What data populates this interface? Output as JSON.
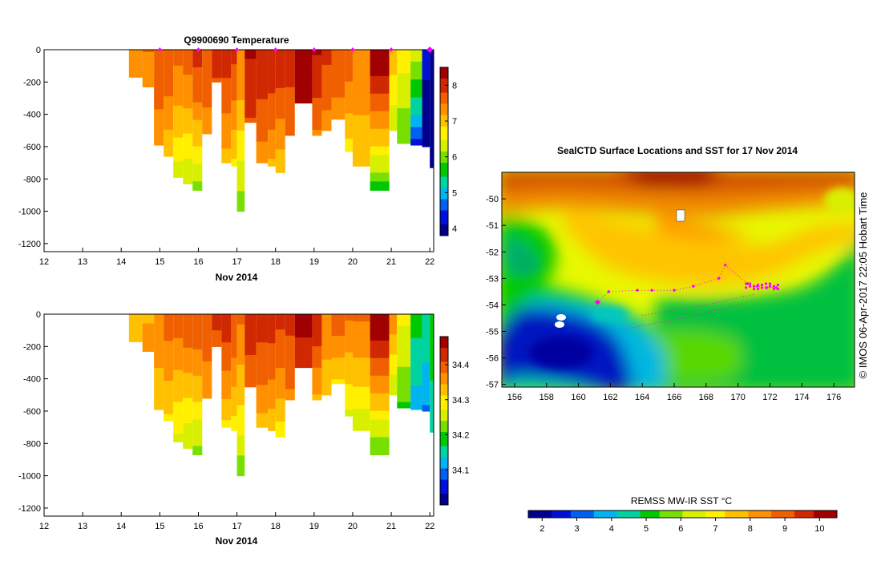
{
  "colors": {
    "scale": [
      "#00008c",
      "#0010d8",
      "#0060f0",
      "#00b4f0",
      "#00d2a0",
      "#00c800",
      "#78e000",
      "#d8f000",
      "#fff000",
      "#ffc000",
      "#ff9000",
      "#f06000",
      "#d02800",
      "#a00000"
    ],
    "frame": "#000000",
    "marker": "#ff00ff",
    "white": "#ffffff"
  },
  "chart_data": [
    {
      "type": "heatmap",
      "title": "Q9900690  Temperature",
      "xlabel": "Nov 2014",
      "ylabel": "",
      "xlim": [
        12,
        22.1
      ],
      "ylim": [
        -1250,
        0
      ],
      "xticks": [
        "12",
        "13",
        "14",
        "15",
        "16",
        "17",
        "18",
        "19",
        "20",
        "21",
        "22"
      ],
      "yticks": [
        "0",
        "-200",
        "-400",
        "-600",
        "-800",
        "-1000",
        "-1200"
      ],
      "colorbar": {
        "ticks": [
          "4",
          "5",
          "6",
          "7",
          "8"
        ],
        "range": [
          3.8,
          8.5
        ]
      },
      "profile_markers_x": [
        15.0,
        16.0,
        17.0,
        18.0,
        19.0,
        20.0,
        21.0,
        22.0
      ],
      "profiles": [
        {
          "x0": 14.2,
          "x1": 14.55,
          "depth": 170,
          "top": 7.4,
          "bot": 7.3
        },
        {
          "x0": 14.55,
          "x1": 14.85,
          "depth": 230,
          "top": 7.5,
          "bot": 7.3
        },
        {
          "x0": 14.85,
          "x1": 15.1,
          "depth": 590,
          "top": 7.8,
          "bot": 7.2
        },
        {
          "x0": 15.1,
          "x1": 15.35,
          "depth": 660,
          "top": 7.8,
          "bot": 6.9
        },
        {
          "x0": 15.35,
          "x1": 15.6,
          "depth": 790,
          "top": 7.6,
          "bot": 6.3
        },
        {
          "x0": 15.6,
          "x1": 15.85,
          "depth": 830,
          "top": 7.7,
          "bot": 6.1
        },
        {
          "x0": 15.85,
          "x1": 16.1,
          "depth": 870,
          "top": 8.0,
          "bot": 6.0
        },
        {
          "x0": 16.1,
          "x1": 16.35,
          "depth": 520,
          "top": 7.8,
          "bot": 7.3
        },
        {
          "x0": 16.35,
          "x1": 16.6,
          "depth": 200,
          "top": 8.0,
          "bot": 7.8
        },
        {
          "x0": 16.6,
          "x1": 16.85,
          "depth": 700,
          "top": 8.0,
          "bot": 7.0
        },
        {
          "x0": 16.85,
          "x1": 17.0,
          "depth": 720,
          "top": 7.9,
          "bot": 6.7
        },
        {
          "x0": 17.0,
          "x1": 17.2,
          "depth": 1000,
          "top": 7.5,
          "bot": 5.9
        },
        {
          "x0": 17.2,
          "x1": 17.5,
          "depth": 450,
          "top": 8.2,
          "bot": 7.8
        },
        {
          "x0": 17.5,
          "x1": 17.8,
          "depth": 700,
          "top": 8.1,
          "bot": 7.3
        },
        {
          "x0": 17.8,
          "x1": 18.0,
          "depth": 720,
          "top": 8.1,
          "bot": 7.1
        },
        {
          "x0": 18.0,
          "x1": 18.25,
          "depth": 760,
          "top": 8.1,
          "bot": 6.9
        },
        {
          "x0": 18.25,
          "x1": 18.5,
          "depth": 530,
          "top": 8.0,
          "bot": 7.5
        },
        {
          "x0": 18.5,
          "x1": 18.95,
          "depth": 330,
          "top": 8.5,
          "bot": 8.2
        },
        {
          "x0": 18.95,
          "x1": 19.2,
          "depth": 530,
          "top": 8.2,
          "bot": 7.4
        },
        {
          "x0": 19.2,
          "x1": 19.45,
          "depth": 500,
          "top": 7.9,
          "bot": 7.3
        },
        {
          "x0": 19.45,
          "x1": 19.8,
          "depth": 430,
          "top": 7.8,
          "bot": 7.3
        },
        {
          "x0": 19.8,
          "x1": 20.0,
          "depth": 630,
          "top": 7.7,
          "bot": 6.7
        },
        {
          "x0": 20.0,
          "x1": 20.45,
          "depth": 720,
          "top": 7.5,
          "bot": 6.8
        },
        {
          "x0": 20.45,
          "x1": 20.95,
          "depth": 870,
          "top": 8.5,
          "bot": 5.6
        },
        {
          "x0": 20.95,
          "x1": 21.15,
          "depth": 500,
          "top": 7.0,
          "bot": 6.2
        },
        {
          "x0": 21.15,
          "x1": 21.5,
          "depth": 580,
          "top": 6.6,
          "bot": 5.8
        },
        {
          "x0": 21.5,
          "x1": 21.8,
          "depth": 590,
          "top": 6.3,
          "bot": 4.3
        },
        {
          "x0": 21.8,
          "x1": 22.0,
          "depth": 600,
          "top": 4.2,
          "bot": 3.9
        },
        {
          "x0": 22.0,
          "x1": 22.1,
          "depth": 730,
          "top": 4.0,
          "bot": 3.8
        }
      ]
    },
    {
      "type": "heatmap",
      "title": "",
      "xlabel": "Nov 2014",
      "ylabel": "",
      "xlim": [
        12,
        22.1
      ],
      "ylim": [
        -1250,
        0
      ],
      "xticks": [
        "12",
        "13",
        "14",
        "15",
        "16",
        "17",
        "18",
        "19",
        "20",
        "21",
        "22"
      ],
      "yticks": [
        "0",
        "-200",
        "-400",
        "-600",
        "-800",
        "-1000",
        "-1200"
      ],
      "colorbar": {
        "ticks": [
          "34.1",
          "34.2",
          "34.3",
          "34.4"
        ],
        "range": [
          34.0,
          34.48
        ]
      },
      "profiles": [
        {
          "x0": 14.2,
          "x1": 14.55,
          "depth": 170,
          "top": 34.34,
          "bot": 34.34
        },
        {
          "x0": 14.55,
          "x1": 14.85,
          "depth": 230,
          "top": 34.34,
          "bot": 34.36
        },
        {
          "x0": 14.85,
          "x1": 15.1,
          "depth": 590,
          "top": 34.37,
          "bot": 34.31
        },
        {
          "x0": 15.1,
          "x1": 15.35,
          "depth": 660,
          "top": 34.39,
          "bot": 34.3
        },
        {
          "x0": 15.35,
          "x1": 15.6,
          "depth": 790,
          "top": 34.39,
          "bot": 34.26
        },
        {
          "x0": 15.6,
          "x1": 15.85,
          "depth": 830,
          "top": 34.4,
          "bot": 34.24
        },
        {
          "x0": 15.85,
          "x1": 16.1,
          "depth": 870,
          "top": 34.41,
          "bot": 34.22
        },
        {
          "x0": 16.1,
          "x1": 16.35,
          "depth": 520,
          "top": 34.4,
          "bot": 34.35
        },
        {
          "x0": 16.35,
          "x1": 16.6,
          "depth": 200,
          "top": 34.42,
          "bot": 34.4
        },
        {
          "x0": 16.6,
          "x1": 16.85,
          "depth": 700,
          "top": 34.43,
          "bot": 34.3
        },
        {
          "x0": 16.85,
          "x1": 17.0,
          "depth": 720,
          "top": 34.41,
          "bot": 34.29
        },
        {
          "x0": 17.0,
          "x1": 17.2,
          "depth": 1000,
          "top": 34.38,
          "bot": 34.22
        },
        {
          "x0": 17.2,
          "x1": 17.5,
          "depth": 450,
          "top": 34.43,
          "bot": 34.39
        },
        {
          "x0": 17.5,
          "x1": 17.8,
          "depth": 700,
          "top": 34.43,
          "bot": 34.33
        },
        {
          "x0": 17.8,
          "x1": 18.0,
          "depth": 720,
          "top": 34.43,
          "bot": 34.31
        },
        {
          "x0": 18.0,
          "x1": 18.25,
          "depth": 760,
          "top": 34.42,
          "bot": 34.29
        },
        {
          "x0": 18.25,
          "x1": 18.5,
          "depth": 530,
          "top": 34.42,
          "bot": 34.37
        },
        {
          "x0": 18.5,
          "x1": 18.95,
          "depth": 330,
          "top": 34.46,
          "bot": 34.42
        },
        {
          "x0": 18.95,
          "x1": 19.2,
          "depth": 530,
          "top": 34.44,
          "bot": 34.33
        },
        {
          "x0": 19.2,
          "x1": 19.45,
          "depth": 500,
          "top": 34.37,
          "bot": 34.31
        },
        {
          "x0": 19.45,
          "x1": 19.8,
          "depth": 430,
          "top": 34.4,
          "bot": 34.3
        },
        {
          "x0": 19.8,
          "x1": 20.0,
          "depth": 630,
          "top": 34.38,
          "bot": 34.26
        },
        {
          "x0": 20.0,
          "x1": 20.45,
          "depth": 720,
          "top": 34.38,
          "bot": 34.24
        },
        {
          "x0": 20.45,
          "x1": 20.95,
          "depth": 870,
          "top": 34.47,
          "bot": 34.2
        },
        {
          "x0": 20.95,
          "x1": 21.15,
          "depth": 500,
          "top": 34.36,
          "bot": 34.24
        },
        {
          "x0": 21.15,
          "x1": 21.5,
          "depth": 580,
          "top": 34.28,
          "bot": 34.2
        },
        {
          "x0": 21.5,
          "x1": 21.8,
          "depth": 590,
          "top": 34.18,
          "bot": 34.12
        },
        {
          "x0": 21.8,
          "x1": 22.0,
          "depth": 600,
          "top": 34.16,
          "bot": 34.1
        },
        {
          "x0": 22.0,
          "x1": 22.1,
          "depth": 730,
          "top": 34.2,
          "bot": 34.14
        }
      ]
    },
    {
      "type": "heatmap",
      "title": "SealCTD Surface Locations and SST for 17 Nov 2014",
      "xlabel": "",
      "ylabel": "",
      "xlim": [
        155.2,
        177.3
      ],
      "ylim": [
        -57.1,
        -49.0
      ],
      "xticks": [
        "156",
        "158",
        "160",
        "162",
        "164",
        "166",
        "168",
        "170",
        "172",
        "174",
        "176"
      ],
      "yticks": [
        "-50",
        "-51",
        "-52",
        "-53",
        "-54",
        "-55",
        "-56",
        "-57"
      ],
      "colorbar": {
        "label": "REMSS MW-IR SST °C",
        "ticks": [
          "2",
          "3",
          "4",
          "5",
          "6",
          "7",
          "8",
          "9",
          "10"
        ],
        "range": [
          1.6,
          10.5
        ],
        "orientation": "horizontal"
      },
      "credit": "© IMOS 06-Apr-2017 22:05 Hobart Time",
      "track_points": [
        {
          "lon": 161.2,
          "lat": -53.9
        },
        {
          "lon": 161.9,
          "lat": -53.5
        },
        {
          "lon": 163.7,
          "lat": -53.45
        },
        {
          "lon": 164.6,
          "lat": -53.45
        },
        {
          "lon": 166.0,
          "lat": -53.45
        },
        {
          "lon": 167.2,
          "lat": -53.3
        },
        {
          "lon": 168.8,
          "lat": -53.0
        },
        {
          "lon": 169.2,
          "lat": -52.5
        },
        {
          "lon": 170.6,
          "lat": -53.2
        },
        {
          "lon": 171.2,
          "lat": -53.3
        },
        {
          "lon": 171.8,
          "lat": -53.35
        },
        {
          "lon": 172.4,
          "lat": -53.35
        }
      ]
    }
  ]
}
